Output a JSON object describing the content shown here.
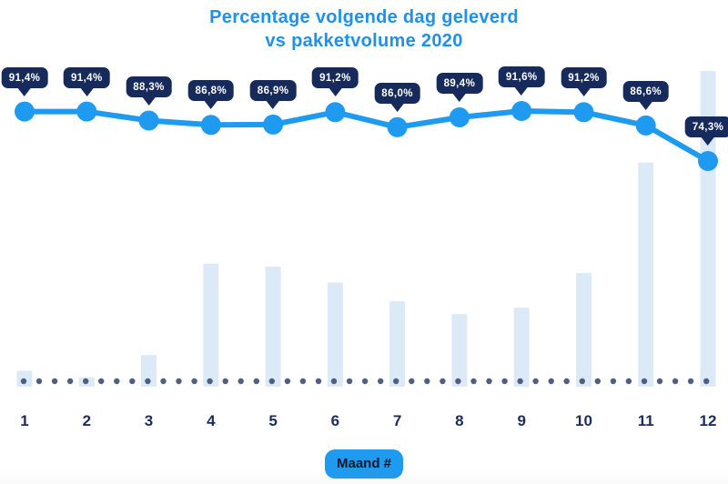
{
  "title": {
    "line1": "Percentage volgende dag geleverd",
    "line2": "vs pakketvolume 2020"
  },
  "x_axis": {
    "title": "Maand #",
    "tick_labels": [
      "1",
      "2",
      "3",
      "4",
      "5",
      "6",
      "7",
      "8",
      "9",
      "10",
      "11",
      "12"
    ]
  },
  "chart_data": {
    "type": "combo-line-bar",
    "title": "Percentage volgende dag geleverd vs pakketvolume 2020",
    "xlabel": "Maand #",
    "ylabel": "",
    "legend": "none",
    "grid": "none",
    "baseline_style": "dotted",
    "categories": [
      "1",
      "2",
      "3",
      "4",
      "5",
      "6",
      "7",
      "8",
      "9",
      "10",
      "11",
      "12"
    ],
    "series": [
      {
        "name": "Percentage volgende dag geleverd",
        "type": "line",
        "unit": "%",
        "values": [
          91.4,
          91.4,
          88.3,
          86.8,
          86.9,
          91.2,
          86.0,
          89.4,
          91.6,
          91.2,
          86.6,
          74.3
        ],
        "point_labels": [
          "91,4%",
          "91,4%",
          "88,3%",
          "86,8%",
          "86,9%",
          "91,2%",
          "86,0%",
          "89,4%",
          "91,6%",
          "91,2%",
          "86,6%",
          "74,3%"
        ]
      },
      {
        "name": "Pakketvolume 2020",
        "type": "bar",
        "unit": "relative volume (no value axis shown, estimated from bar heights, max = 100)",
        "values": [
          5,
          3,
          10,
          39,
          38,
          33,
          27,
          23,
          25,
          36,
          71,
          100
        ]
      }
    ]
  },
  "colors": {
    "accent_blue": "#1e9bf0",
    "title_blue": "#1e90f0",
    "badge_navy": "#172a5c",
    "axis_label_navy": "#1b2d5e",
    "bar_fill": "#dceaf8",
    "baseline_dot": "#4e5f82",
    "background": "#ffffff"
  }
}
